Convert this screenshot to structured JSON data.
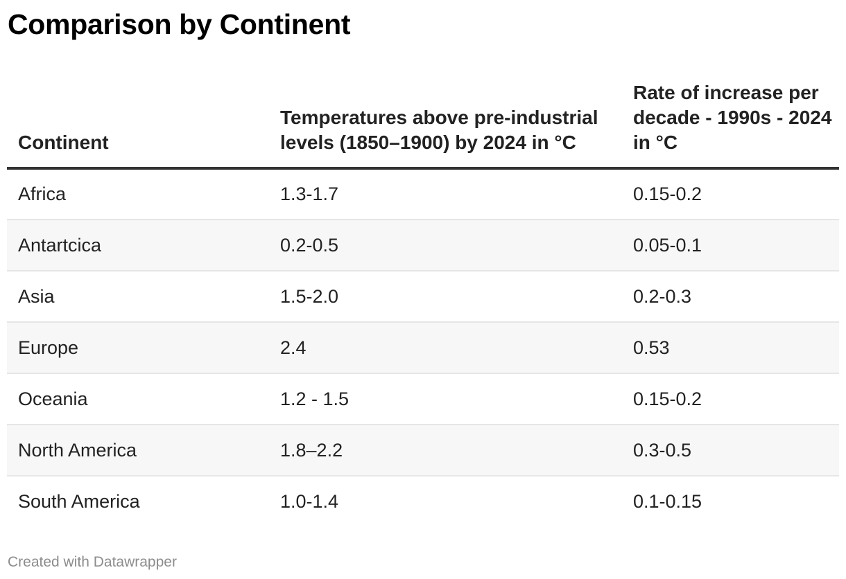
{
  "title": "Comparison by Continent",
  "footer": "Created with Datawrapper",
  "chart_data": {
    "type": "table",
    "title": "Comparison by Continent",
    "columns": [
      "Continent",
      "Temperatures above pre-industrial levels (1850–1900) by 2024 in °C",
      "Rate of increase per decade - 1990s - 2024 in °C"
    ],
    "rows": [
      [
        "Africa",
        "1.3-1.7",
        "0.15-0.2"
      ],
      [
        "Antartcica",
        "0.2-0.5",
        "0.05-0.1"
      ],
      [
        "Asia",
        "1.5-2.0",
        "0.2-0.3"
      ],
      [
        "Europe",
        "2.4",
        "0.53"
      ],
      [
        "Oceania",
        "1.2 - 1.5",
        "0.15-0.2"
      ],
      [
        "North America",
        "1.8–2.2",
        "0.3-0.5"
      ],
      [
        "South America",
        "1.0-1.4",
        "0.1-0.15"
      ]
    ]
  }
}
